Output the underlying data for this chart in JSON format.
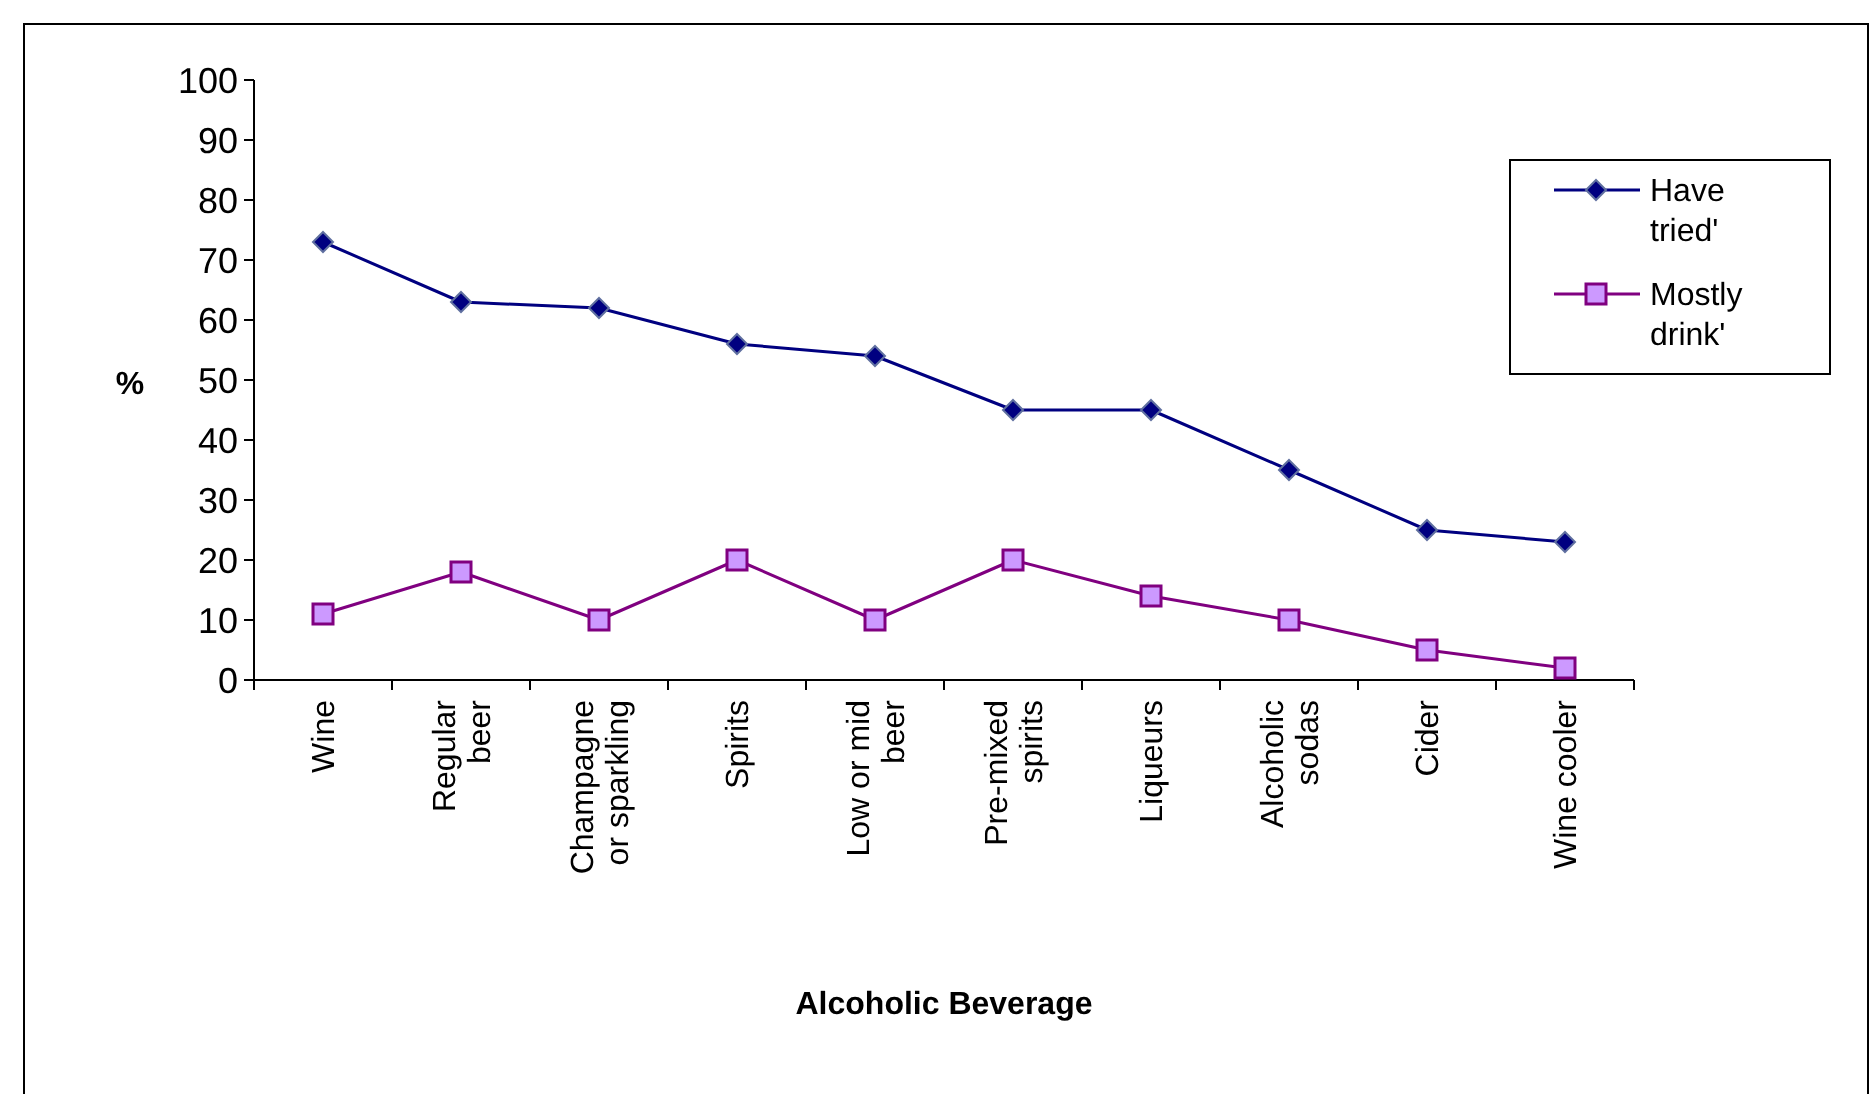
{
  "chart_data": {
    "type": "line",
    "xlabel": "Alcoholic Beverage",
    "ylabel": "%",
    "categories": [
      "Wine",
      "Regular\nbeer",
      "Champagne\nor sparkling",
      "Spirits",
      "Low or mid\nbeer",
      "Pre-mixed\nspirits",
      "Liqueurs",
      "Alcoholic\nsodas",
      "Cider",
      "Wine cooler"
    ],
    "series": [
      {
        "name": "Have\ntried'",
        "color": "#000080",
        "marker": "diamond",
        "values": [
          73,
          63,
          62,
          56,
          54,
          45,
          45,
          35,
          25,
          23
        ]
      },
      {
        "name": "Mostly\ndrink'",
        "color": "#800080",
        "marker": "square",
        "values": [
          11,
          18,
          10,
          20,
          10,
          20,
          14,
          10,
          5,
          2
        ]
      }
    ],
    "ylim": [
      0,
      100
    ],
    "yticks": [
      0,
      10,
      20,
      30,
      40,
      50,
      60,
      70,
      80,
      90,
      100
    ],
    "grid": false,
    "legend": "right"
  }
}
